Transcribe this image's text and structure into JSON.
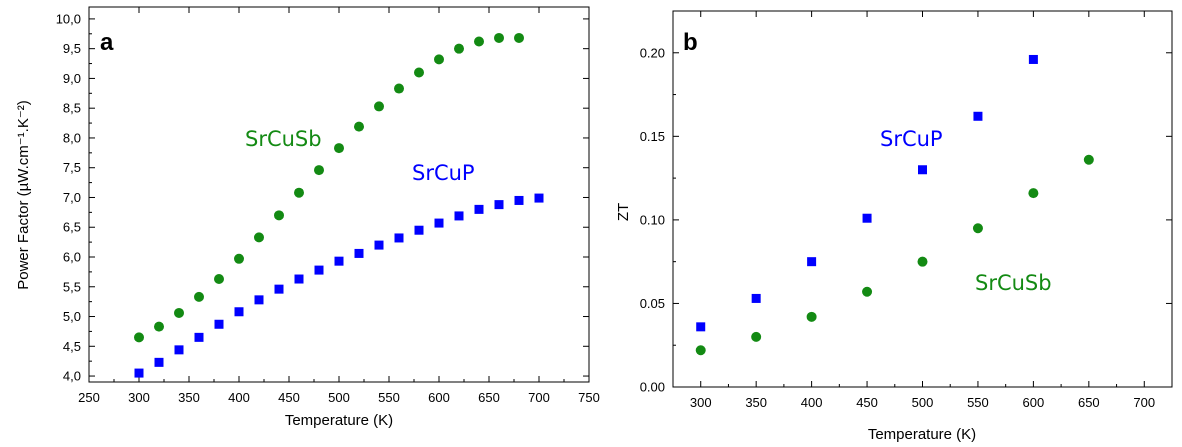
{
  "colors": {
    "SrCuP": "#0000ff",
    "SrCuSb": "#138a13"
  },
  "chart_data": [
    {
      "type": "scatter",
      "panel_label": "a",
      "xlabel": "Temperature (K)",
      "ylabel": "Power Factor (µW.cm⁻¹.K⁻²)",
      "xlim": [
        250,
        750
      ],
      "ylim": [
        3.9,
        10.2
      ],
      "xticks": [
        "250",
        "300",
        "350",
        "400",
        "450",
        "500",
        "550",
        "600",
        "650",
        "700",
        "750"
      ],
      "yticks": [
        "4,0",
        "4,5",
        "5,0",
        "5,5",
        "6,0",
        "6,5",
        "7,0",
        "7,5",
        "8,0",
        "8,5",
        "9,0",
        "9,5",
        "10,0"
      ],
      "grid": false,
      "series": [
        {
          "name": "SrCuSb",
          "marker": "circle",
          "x": [
            300,
            320,
            340,
            360,
            380,
            400,
            420,
            440,
            460,
            480,
            500,
            520,
            540,
            560,
            580,
            600,
            620,
            640,
            660,
            680
          ],
          "y": [
            4.65,
            4.83,
            5.06,
            5.33,
            5.63,
            5.97,
            6.33,
            6.7,
            7.08,
            7.46,
            7.83,
            8.19,
            8.53,
            8.83,
            9.1,
            9.32,
            9.5,
            9.62,
            9.68,
            9.68
          ]
        },
        {
          "name": "SrCuP",
          "marker": "square",
          "x": [
            300,
            320,
            340,
            360,
            380,
            400,
            420,
            440,
            460,
            480,
            500,
            520,
            540,
            560,
            580,
            600,
            620,
            640,
            660,
            680,
            700
          ],
          "y": [
            4.05,
            4.23,
            4.44,
            4.65,
            4.87,
            5.08,
            5.28,
            5.46,
            5.63,
            5.78,
            5.93,
            6.06,
            6.2,
            6.32,
            6.45,
            6.57,
            6.69,
            6.8,
            6.88,
            6.95,
            6.99
          ]
        }
      ]
    },
    {
      "type": "scatter",
      "panel_label": "b",
      "xlabel": "Temperature (K)",
      "ylabel": "ZT",
      "xlim": [
        275,
        725
      ],
      "ylim": [
        0,
        0.225
      ],
      "xticks": [
        "300",
        "350",
        "400",
        "450",
        "500",
        "550",
        "600",
        "650",
        "700"
      ],
      "yticks": [
        "0.00",
        "0.05",
        "0.10",
        "0.15",
        "0.20"
      ],
      "grid": false,
      "series": [
        {
          "name": "SrCuP",
          "marker": "square",
          "x": [
            300,
            350,
            400,
            450,
            500,
            550,
            600
          ],
          "y": [
            0.036,
            0.053,
            0.075,
            0.101,
            0.13,
            0.162,
            0.196
          ]
        },
        {
          "name": "SrCuSb",
          "marker": "circle",
          "x": [
            300,
            350,
            400,
            450,
            500,
            550,
            600,
            650
          ],
          "y": [
            0.022,
            0.03,
            0.042,
            0.057,
            0.075,
            0.095,
            0.116,
            0.136
          ]
        }
      ]
    }
  ]
}
